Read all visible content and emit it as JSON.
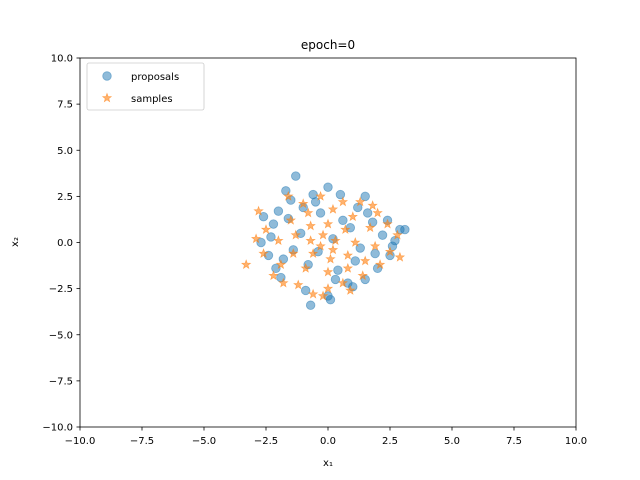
{
  "chart_data": {
    "type": "scatter",
    "title": "epoch=0",
    "xlabel": "x₁",
    "ylabel": "x₂",
    "xlim": [
      -10,
      10
    ],
    "ylim": [
      -10,
      10
    ],
    "xticks": [
      -10,
      -7.5,
      -5,
      -2.5,
      0,
      2.5,
      5,
      7.5,
      10
    ],
    "yticks": [
      -10,
      -7.5,
      -5,
      -2.5,
      0,
      2.5,
      5,
      7.5,
      10
    ],
    "xtick_labels": [
      "−10.0",
      "−7.5",
      "−5.0",
      "−2.5",
      "0.0",
      "2.5",
      "5.0",
      "7.5",
      "10.0"
    ],
    "ytick_labels": [
      "−10.0",
      "−7.5",
      "−5.0",
      "−2.5",
      "0.0",
      "2.5",
      "5.0",
      "7.5",
      "10.0"
    ],
    "grid": false,
    "legend_position": "top-left",
    "series": [
      {
        "name": "proposals",
        "marker": "circle",
        "color": "#1f77b4",
        "points": [
          [
            -1.3,
            3.6
          ],
          [
            0.0,
            3.0
          ],
          [
            -1.7,
            2.8
          ],
          [
            0.5,
            2.6
          ],
          [
            1.5,
            2.5
          ],
          [
            -0.6,
            2.6
          ],
          [
            -2.6,
            1.4
          ],
          [
            -2.2,
            1.0
          ],
          [
            2.4,
            1.2
          ],
          [
            2.9,
            0.7
          ],
          [
            3.1,
            0.7
          ],
          [
            -2.3,
            0.3
          ],
          [
            -2.7,
            0.0
          ],
          [
            2.7,
            0.1
          ],
          [
            -2.4,
            -0.7
          ],
          [
            2.5,
            -0.7
          ],
          [
            -2.1,
            -1.4
          ],
          [
            2.0,
            -1.4
          ],
          [
            -1.9,
            -1.9
          ],
          [
            1.5,
            -2.0
          ],
          [
            -0.9,
            -2.6
          ],
          [
            0.8,
            -2.2
          ],
          [
            1.0,
            -2.4
          ],
          [
            0.0,
            -2.9
          ],
          [
            0.1,
            -3.1
          ],
          [
            -0.7,
            -3.4
          ],
          [
            -1.0,
            1.9
          ],
          [
            1.2,
            1.9
          ],
          [
            -1.6,
            1.3
          ],
          [
            1.8,
            1.1
          ],
          [
            -1.4,
            -0.4
          ],
          [
            1.9,
            -0.6
          ],
          [
            -0.3,
            1.6
          ],
          [
            0.4,
            -1.5
          ],
          [
            -0.8,
            -1.2
          ],
          [
            0.9,
            0.8
          ],
          [
            -1.1,
            0.5
          ],
          [
            1.3,
            -0.3
          ],
          [
            0.2,
            0.2
          ],
          [
            -0.4,
            -0.5
          ],
          [
            0.6,
            1.2
          ],
          [
            -1.8,
            -0.9
          ],
          [
            2.2,
            0.4
          ],
          [
            -2.0,
            1.7
          ],
          [
            1.6,
            1.6
          ],
          [
            0.3,
            -2.0
          ],
          [
            -0.5,
            2.2
          ],
          [
            1.1,
            -1.0
          ],
          [
            -1.5,
            2.3
          ],
          [
            2.6,
            -0.2
          ]
        ]
      },
      {
        "name": "samples",
        "marker": "star",
        "color": "#ff7f0e",
        "points": [
          [
            -3.3,
            -1.2
          ],
          [
            -2.8,
            1.7
          ],
          [
            -2.5,
            0.7
          ],
          [
            -2.6,
            -0.6
          ],
          [
            -2.2,
            -1.8
          ],
          [
            -1.8,
            -2.2
          ],
          [
            -1.6,
            2.5
          ],
          [
            -0.3,
            2.5
          ],
          [
            0.6,
            2.2
          ],
          [
            1.3,
            2.2
          ],
          [
            2.0,
            1.6
          ],
          [
            2.4,
            1.0
          ],
          [
            2.8,
            0.4
          ],
          [
            2.5,
            -0.5
          ],
          [
            2.1,
            -1.2
          ],
          [
            1.4,
            -1.8
          ],
          [
            0.6,
            -2.2
          ],
          [
            0.0,
            -2.5
          ],
          [
            -0.6,
            -2.8
          ],
          [
            -1.2,
            -2.3
          ],
          [
            -1.9,
            -1.2
          ],
          [
            -2.0,
            0.1
          ],
          [
            -1.5,
            1.2
          ],
          [
            -0.8,
            1.6
          ],
          [
            0.2,
            1.8
          ],
          [
            1.0,
            1.4
          ],
          [
            1.7,
            0.8
          ],
          [
            1.9,
            -0.2
          ],
          [
            1.5,
            -1.0
          ],
          [
            0.8,
            -1.4
          ],
          [
            0.0,
            -1.6
          ],
          [
            -0.9,
            -1.4
          ],
          [
            -1.4,
            -0.6
          ],
          [
            -1.3,
            0.4
          ],
          [
            -0.7,
            0.9
          ],
          [
            0.0,
            1.0
          ],
          [
            0.7,
            0.7
          ],
          [
            1.1,
            0.0
          ],
          [
            0.8,
            -0.7
          ],
          [
            0.1,
            -0.9
          ],
          [
            -0.6,
            -0.6
          ],
          [
            -0.7,
            0.1
          ],
          [
            -0.2,
            0.4
          ],
          [
            0.3,
            0.1
          ],
          [
            0.2,
            -0.4
          ],
          [
            -0.3,
            -0.2
          ],
          [
            2.9,
            -0.8
          ],
          [
            -2.9,
            0.2
          ],
          [
            1.8,
            2.0
          ],
          [
            -1.0,
            2.1
          ],
          [
            0.9,
            -2.6
          ],
          [
            -0.2,
            -2.9
          ]
        ]
      }
    ]
  }
}
